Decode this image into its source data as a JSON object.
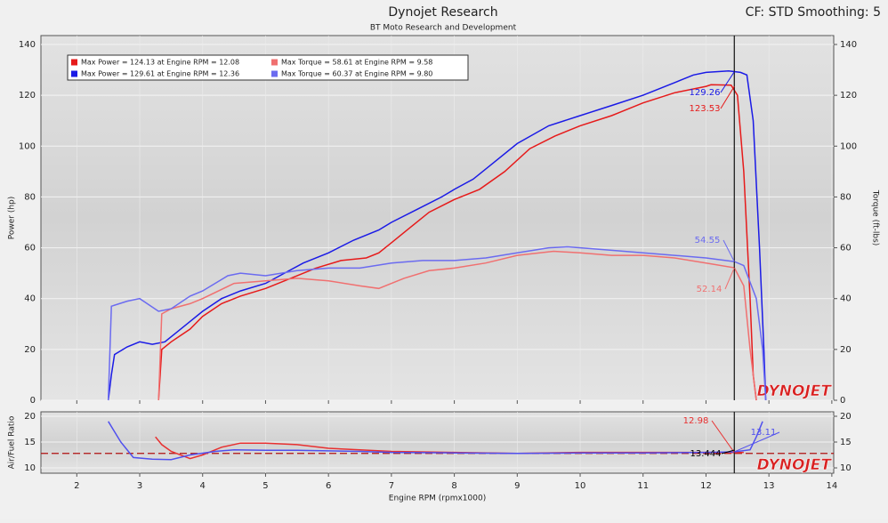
{
  "title": "Dynojet Research",
  "subtitle": "BT Moto Research and Development",
  "header_right": "CF: STD Smoothing: 5",
  "logo": "DYNOJET",
  "chart_data": [
    {
      "type": "line",
      "y_label": "Power (hp)",
      "y2_label": "Torque (ft-lbs)",
      "xlim": [
        1.43,
        14.03
      ],
      "xticks": [
        2,
        3,
        4,
        5,
        6,
        7,
        8,
        9,
        10,
        11,
        12,
        13,
        14
      ],
      "ylim": [
        0,
        143.5
      ],
      "yticks": [
        0,
        20,
        40,
        60,
        80,
        100,
        120,
        140
      ],
      "y2lim": [
        0,
        143.5
      ],
      "y2ticks": [
        0,
        20,
        40,
        60,
        80,
        100,
        120,
        140
      ],
      "grid": true,
      "series": [
        {
          "name": "Max Power = 124.13 at Engine RPM = 12.08",
          "color": "#e61a1a",
          "x": [
            3.3,
            3.35,
            3.5,
            3.8,
            4.0,
            4.3,
            4.6,
            5.0,
            5.4,
            5.8,
            6.2,
            6.6,
            6.8,
            7.0,
            7.3,
            7.6,
            8.0,
            8.4,
            8.8,
            9.2,
            9.6,
            10,
            10.5,
            11,
            11.5,
            12,
            12.08,
            12.4,
            12.5,
            12.6,
            12.7,
            12.75,
            12.8
          ],
          "values": [
            0,
            20,
            23,
            28,
            33,
            38,
            41,
            44,
            48,
            52,
            55,
            56,
            58,
            62,
            68,
            74,
            79,
            83,
            90,
            99,
            104,
            108,
            112,
            117,
            121,
            123.5,
            124.13,
            124,
            120,
            90,
            40,
            10,
            0
          ]
        },
        {
          "name": "Max Power = 129.61 at Engine RPM = 12.36",
          "color": "#1a1ae6",
          "x": [
            2.5,
            2.55,
            2.6,
            2.8,
            3.0,
            3.2,
            3.4,
            3.6,
            3.8,
            4.0,
            4.3,
            4.6,
            5.0,
            5.3,
            5.6,
            6.0,
            6.4,
            6.8,
            7.0,
            7.4,
            7.8,
            8.0,
            8.3,
            8.6,
            9.0,
            9.5,
            10,
            10.5,
            11,
            11.5,
            11.8,
            12,
            12.36,
            12.55,
            12.65,
            12.75,
            12.85,
            12.92,
            12.95
          ],
          "values": [
            0,
            10,
            18,
            21,
            23,
            22,
            23,
            27,
            31,
            35,
            40,
            43,
            46,
            50,
            54,
            58,
            63,
            67,
            70,
            75,
            80,
            83,
            87,
            93,
            101,
            108,
            112,
            116,
            120,
            125,
            128,
            129,
            129.61,
            129,
            128,
            110,
            60,
            20,
            0
          ]
        },
        {
          "name": "Max Torque = 58.61 at Engine RPM = 9.58",
          "color": "#f07070",
          "x": [
            3.3,
            3.35,
            3.5,
            3.8,
            4.0,
            4.5,
            5.0,
            5.5,
            6.0,
            6.5,
            6.8,
            7.2,
            7.6,
            8.0,
            8.5,
            9.0,
            9.58,
            10,
            10.5,
            11,
            11.5,
            12,
            12.45,
            12.6,
            12.7,
            12.8
          ],
          "values": [
            0,
            34,
            36,
            38,
            40,
            46,
            47,
            48,
            47,
            45,
            44,
            48,
            51,
            52,
            54,
            57,
            58.61,
            58,
            57,
            57,
            56,
            54,
            52.14,
            45,
            20,
            0
          ]
        },
        {
          "name": "Max Torque = 60.37 at Engine RPM = 9.80",
          "color": "#6b6bf0",
          "x": [
            2.5,
            2.55,
            2.8,
            3.0,
            3.3,
            3.5,
            3.8,
            4.0,
            4.4,
            4.6,
            5.0,
            5.5,
            6.0,
            6.5,
            7.0,
            7.5,
            8.0,
            8.5,
            9.0,
            9.5,
            9.8,
            10.5,
            11,
            11.5,
            12,
            12.45,
            12.6,
            12.8,
            12.9,
            12.95
          ],
          "values": [
            0,
            37,
            39,
            40,
            35,
            36,
            41,
            43,
            49,
            50,
            49,
            51,
            52,
            52,
            54,
            55,
            55,
            56,
            58,
            60,
            60.37,
            59,
            58,
            57,
            56,
            54.55,
            53,
            40,
            20,
            0
          ]
        }
      ],
      "cursor_x": 12.45,
      "cursor_readouts": [
        {
          "value": 129.26,
          "color": "#1a1ae6"
        },
        {
          "value": 123.53,
          "color": "#e61a1a"
        },
        {
          "value": 54.55,
          "color": "#6b6bf0"
        },
        {
          "value": 52.14,
          "color": "#f07070"
        }
      ]
    },
    {
      "type": "line",
      "y_label": "Air/Fuel Ratio",
      "x_label": "Engine RPM (rpmx1000)",
      "xlim": [
        1.43,
        14.03
      ],
      "xticks": [
        2,
        3,
        4,
        5,
        6,
        7,
        8,
        9,
        10,
        11,
        12,
        13,
        14
      ],
      "ylim": [
        8.97,
        20.86
      ],
      "yticks": [
        10,
        15,
        20
      ],
      "y2lim": [
        8.97,
        20.86
      ],
      "y2ticks": [
        10,
        15,
        20
      ],
      "grid": true,
      "series": [
        {
          "color": "#e83030",
          "x": [
            3.25,
            3.35,
            3.5,
            3.8,
            4.0,
            4.3,
            4.6,
            5,
            5.5,
            6,
            6.5,
            7,
            8,
            9,
            10,
            11,
            12,
            12.45,
            12.6
          ],
          "values": [
            16,
            14.5,
            13.2,
            11.8,
            12.5,
            14,
            14.8,
            14.8,
            14.5,
            13.8,
            13.5,
            13.2,
            13,
            12.8,
            13,
            13,
            13,
            12.98,
            13
          ]
        },
        {
          "color": "#5050ee",
          "x": [
            2.5,
            2.7,
            2.9,
            3.2,
            3.5,
            3.8,
            4.2,
            4.5,
            5,
            5.5,
            6,
            6.5,
            7,
            8,
            9,
            10,
            11,
            12,
            12.45,
            12.7,
            12.8,
            12.9
          ],
          "values": [
            19,
            15,
            12,
            11.7,
            11.6,
            12.5,
            13.2,
            13.5,
            13.4,
            13.4,
            13.3,
            13.2,
            13,
            12.9,
            12.8,
            12.9,
            12.9,
            13,
            13.11,
            13.5,
            16,
            19
          ]
        }
      ],
      "reference_line": 12.8,
      "cursor_x": 12.45,
      "cursor_readouts": [
        {
          "value": 12.98,
          "color": "#e83030"
        },
        {
          "value": 13.11,
          "color": "#5050ee"
        },
        {
          "value": 13.444,
          "color": "#000000"
        }
      ]
    }
  ]
}
